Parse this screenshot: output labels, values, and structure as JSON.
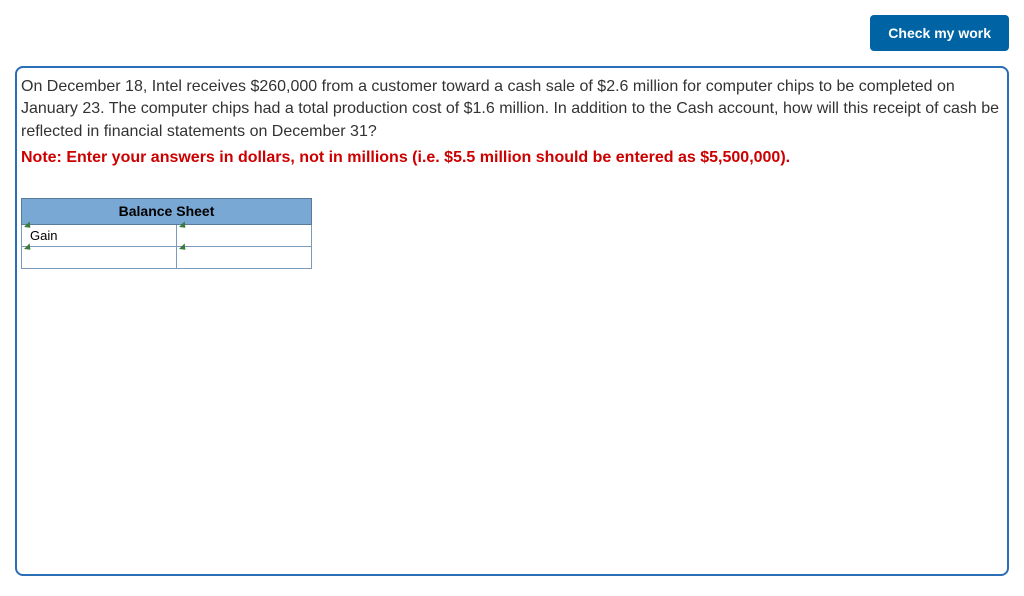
{
  "topbar": {
    "check_button": "Check my work"
  },
  "question": {
    "text": "On December 18, Intel receives $260,000 from a customer toward a cash sale of $2.6 million for computer chips to be completed on January 23. The computer chips had a total production cost of $1.6 million. In addition to the Cash account, how will this receipt of cash be reflected in financial statements on December 31?",
    "note": "Note: Enter your answers in dollars, not in millions (i.e. $5.5 million should be entered as $5,500,000)."
  },
  "table": {
    "header": "Balance Sheet",
    "rows": [
      {
        "left": "Gain",
        "right": ""
      },
      {
        "left": "",
        "right": ""
      }
    ]
  },
  "colors": {
    "button_bg": "#0064a4",
    "border": "#2a6eb5",
    "table_header_bg": "#7aa8d4",
    "note_color": "#cc0000"
  }
}
